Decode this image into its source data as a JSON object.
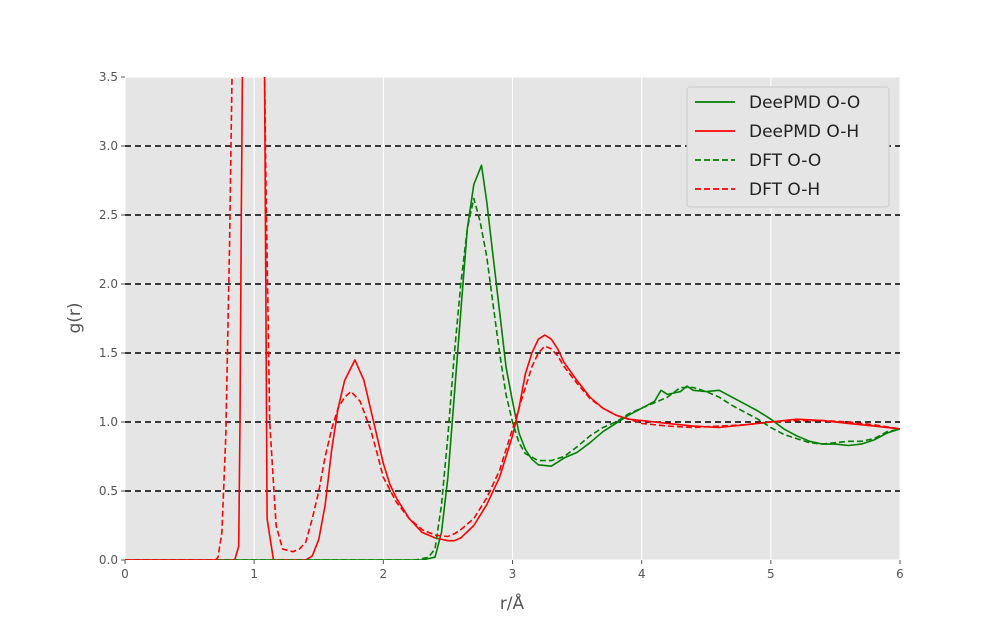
{
  "chart_data": {
    "type": "line",
    "xlabel": "r/Å",
    "ylabel": "g(r)",
    "xlim": [
      0,
      6
    ],
    "ylim": [
      0,
      3.5
    ],
    "xticks": [
      "0",
      "1",
      "2",
      "3",
      "4",
      "5",
      "6"
    ],
    "yticks": [
      "0.0",
      "0.5",
      "1.0",
      "1.5",
      "2.0",
      "2.5",
      "3.0",
      "3.5"
    ],
    "reference_lines_y": [
      0.5,
      1.0,
      1.5,
      2.0,
      2.5,
      3.0
    ],
    "grid": true,
    "legend_position": "top-right",
    "colors": {
      "background": "#e5e5e5",
      "grid": "#ffffff",
      "green": "#008000",
      "red": "#ff0000",
      "reference": "#000000"
    },
    "series": [
      {
        "name": "DeePMD O-O",
        "color": "#008000",
        "style": "solid",
        "points": [
          [
            0,
            0
          ],
          [
            2.3,
            0
          ],
          [
            2.4,
            0.02
          ],
          [
            2.45,
            0.2
          ],
          [
            2.5,
            0.6
          ],
          [
            2.55,
            1.2
          ],
          [
            2.6,
            1.8
          ],
          [
            2.65,
            2.4
          ],
          [
            2.7,
            2.72
          ],
          [
            2.76,
            2.86
          ],
          [
            2.8,
            2.6
          ],
          [
            2.85,
            2.2
          ],
          [
            2.9,
            1.8
          ],
          [
            2.95,
            1.4
          ],
          [
            3.0,
            1.15
          ],
          [
            3.05,
            0.92
          ],
          [
            3.1,
            0.8
          ],
          [
            3.15,
            0.73
          ],
          [
            3.2,
            0.69
          ],
          [
            3.3,
            0.68
          ],
          [
            3.4,
            0.74
          ],
          [
            3.5,
            0.78
          ],
          [
            3.6,
            0.85
          ],
          [
            3.7,
            0.93
          ],
          [
            3.8,
            0.99
          ],
          [
            3.9,
            1.05
          ],
          [
            4.0,
            1.1
          ],
          [
            4.1,
            1.15
          ],
          [
            4.15,
            1.23
          ],
          [
            4.2,
            1.2
          ],
          [
            4.3,
            1.22
          ],
          [
            4.35,
            1.26
          ],
          [
            4.4,
            1.23
          ],
          [
            4.5,
            1.22
          ],
          [
            4.6,
            1.23
          ],
          [
            4.7,
            1.18
          ],
          [
            4.8,
            1.13
          ],
          [
            4.9,
            1.08
          ],
          [
            5.0,
            1.02
          ],
          [
            5.1,
            0.95
          ],
          [
            5.2,
            0.9
          ],
          [
            5.3,
            0.86
          ],
          [
            5.4,
            0.84
          ],
          [
            5.5,
            0.84
          ],
          [
            5.6,
            0.83
          ],
          [
            5.7,
            0.84
          ],
          [
            5.8,
            0.87
          ],
          [
            5.9,
            0.92
          ],
          [
            6.0,
            0.95
          ]
        ]
      },
      {
        "name": "DeePMD O-H",
        "color": "#ff0000",
        "style": "solid",
        "points": [
          [
            0,
            0
          ],
          [
            0.85,
            0
          ],
          [
            0.88,
            0.1
          ],
          [
            0.89,
            1.0
          ],
          [
            0.9,
            2.5
          ],
          [
            0.91,
            3.6
          ],
          [
            1.08,
            3.6
          ],
          [
            1.09,
            2.0
          ],
          [
            1.1,
            0.3
          ],
          [
            1.15,
            0.0
          ],
          [
            1.4,
            0.0
          ],
          [
            1.45,
            0.03
          ],
          [
            1.5,
            0.15
          ],
          [
            1.55,
            0.4
          ],
          [
            1.6,
            0.8
          ],
          [
            1.65,
            1.1
          ],
          [
            1.7,
            1.3
          ],
          [
            1.78,
            1.45
          ],
          [
            1.85,
            1.3
          ],
          [
            1.9,
            1.1
          ],
          [
            1.95,
            0.9
          ],
          [
            2.0,
            0.7
          ],
          [
            2.05,
            0.55
          ],
          [
            2.1,
            0.45
          ],
          [
            2.2,
            0.3
          ],
          [
            2.3,
            0.2
          ],
          [
            2.4,
            0.16
          ],
          [
            2.5,
            0.14
          ],
          [
            2.55,
            0.14
          ],
          [
            2.6,
            0.16
          ],
          [
            2.7,
            0.25
          ],
          [
            2.8,
            0.4
          ],
          [
            2.9,
            0.6
          ],
          [
            3.0,
            0.9
          ],
          [
            3.05,
            1.1
          ],
          [
            3.1,
            1.35
          ],
          [
            3.15,
            1.5
          ],
          [
            3.2,
            1.6
          ],
          [
            3.25,
            1.63
          ],
          [
            3.3,
            1.6
          ],
          [
            3.35,
            1.53
          ],
          [
            3.4,
            1.43
          ],
          [
            3.5,
            1.3
          ],
          [
            3.6,
            1.18
          ],
          [
            3.7,
            1.1
          ],
          [
            3.8,
            1.05
          ],
          [
            3.9,
            1.02
          ],
          [
            4.0,
            1.01
          ],
          [
            4.2,
            0.99
          ],
          [
            4.4,
            0.97
          ],
          [
            4.6,
            0.96
          ],
          [
            4.8,
            0.98
          ],
          [
            5.0,
            1.0
          ],
          [
            5.2,
            1.02
          ],
          [
            5.4,
            1.01
          ],
          [
            5.6,
            0.99
          ],
          [
            5.8,
            0.97
          ],
          [
            6.0,
            0.95
          ]
        ]
      },
      {
        "name": "DFT O-O",
        "color": "#008000",
        "style": "dashed",
        "points": [
          [
            0,
            0
          ],
          [
            2.25,
            0
          ],
          [
            2.35,
            0.02
          ],
          [
            2.4,
            0.08
          ],
          [
            2.45,
            0.4
          ],
          [
            2.5,
            0.9
          ],
          [
            2.55,
            1.5
          ],
          [
            2.6,
            2.0
          ],
          [
            2.65,
            2.4
          ],
          [
            2.7,
            2.62
          ],
          [
            2.75,
            2.45
          ],
          [
            2.8,
            2.2
          ],
          [
            2.85,
            1.85
          ],
          [
            2.9,
            1.5
          ],
          [
            2.95,
            1.2
          ],
          [
            3.0,
            1.0
          ],
          [
            3.05,
            0.85
          ],
          [
            3.1,
            0.77
          ],
          [
            3.2,
            0.72
          ],
          [
            3.3,
            0.72
          ],
          [
            3.4,
            0.75
          ],
          [
            3.5,
            0.82
          ],
          [
            3.6,
            0.9
          ],
          [
            3.7,
            0.96
          ],
          [
            3.8,
            1.0
          ],
          [
            3.9,
            1.06
          ],
          [
            4.0,
            1.1
          ],
          [
            4.1,
            1.14
          ],
          [
            4.2,
            1.18
          ],
          [
            4.3,
            1.25
          ],
          [
            4.4,
            1.25
          ],
          [
            4.5,
            1.22
          ],
          [
            4.6,
            1.18
          ],
          [
            4.7,
            1.12
          ],
          [
            4.8,
            1.07
          ],
          [
            4.9,
            1.02
          ],
          [
            5.0,
            0.96
          ],
          [
            5.1,
            0.91
          ],
          [
            5.2,
            0.88
          ],
          [
            5.3,
            0.85
          ],
          [
            5.4,
            0.84
          ],
          [
            5.5,
            0.85
          ],
          [
            5.6,
            0.86
          ],
          [
            5.7,
            0.86
          ],
          [
            5.8,
            0.88
          ],
          [
            5.9,
            0.93
          ],
          [
            6.0,
            0.95
          ]
        ]
      },
      {
        "name": "DFT O-H",
        "color": "#ff0000",
        "style": "dashed",
        "points": [
          [
            0,
            0
          ],
          [
            0.7,
            0
          ],
          [
            0.72,
            0.02
          ],
          [
            0.75,
            0.2
          ],
          [
            0.78,
            0.9
          ],
          [
            0.81,
            2.3
          ],
          [
            0.83,
            3.6
          ],
          [
            1.08,
            3.6
          ],
          [
            1.09,
            2.8
          ],
          [
            1.12,
            1.0
          ],
          [
            1.17,
            0.25
          ],
          [
            1.22,
            0.08
          ],
          [
            1.3,
            0.06
          ],
          [
            1.35,
            0.08
          ],
          [
            1.4,
            0.13
          ],
          [
            1.45,
            0.3
          ],
          [
            1.5,
            0.5
          ],
          [
            1.55,
            0.75
          ],
          [
            1.6,
            0.95
          ],
          [
            1.65,
            1.1
          ],
          [
            1.7,
            1.18
          ],
          [
            1.75,
            1.22
          ],
          [
            1.82,
            1.15
          ],
          [
            1.9,
            0.95
          ],
          [
            1.95,
            0.78
          ],
          [
            2.0,
            0.6
          ],
          [
            2.1,
            0.42
          ],
          [
            2.2,
            0.3
          ],
          [
            2.3,
            0.22
          ],
          [
            2.4,
            0.18
          ],
          [
            2.5,
            0.17
          ],
          [
            2.55,
            0.19
          ],
          [
            2.6,
            0.22
          ],
          [
            2.7,
            0.3
          ],
          [
            2.8,
            0.45
          ],
          [
            2.9,
            0.65
          ],
          [
            3.0,
            0.95
          ],
          [
            3.1,
            1.25
          ],
          [
            3.15,
            1.4
          ],
          [
            3.2,
            1.5
          ],
          [
            3.25,
            1.55
          ],
          [
            3.3,
            1.53
          ],
          [
            3.35,
            1.48
          ],
          [
            3.4,
            1.4
          ],
          [
            3.5,
            1.28
          ],
          [
            3.6,
            1.17
          ],
          [
            3.7,
            1.1
          ],
          [
            3.8,
            1.05
          ],
          [
            3.9,
            1.02
          ],
          [
            4.0,
            0.99
          ],
          [
            4.2,
            0.97
          ],
          [
            4.4,
            0.96
          ],
          [
            4.6,
            0.97
          ],
          [
            4.8,
            0.98
          ],
          [
            5.0,
            1.0
          ],
          [
            5.2,
            1.01
          ],
          [
            5.4,
            1.01
          ],
          [
            5.6,
            1.0
          ],
          [
            5.8,
            0.98
          ],
          [
            6.0,
            0.95
          ]
        ]
      }
    ]
  }
}
